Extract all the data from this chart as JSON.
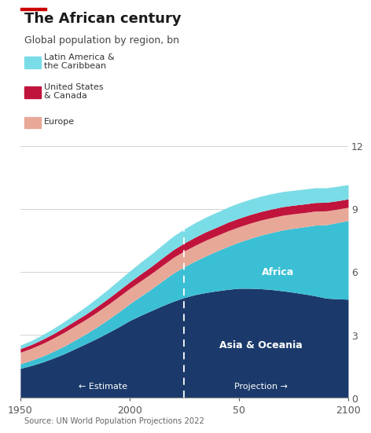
{
  "title": "The African century",
  "subtitle": "Global population by region, bn",
  "source": "Source: UN World Population Projections 2022",
  "title_color": "#1a1a1a",
  "background_color": "#ffffff",
  "projection_year": 2025,
  "x_years": [
    1950,
    1955,
    1960,
    1965,
    1970,
    1975,
    1980,
    1985,
    1990,
    1995,
    2000,
    2005,
    2010,
    2015,
    2020,
    2025,
    2030,
    2035,
    2040,
    2045,
    2050,
    2055,
    2060,
    2065,
    2070,
    2075,
    2080,
    2085,
    2090,
    2095,
    2100
  ],
  "asia_oceania": [
    1.4,
    1.54,
    1.7,
    1.89,
    2.1,
    2.34,
    2.58,
    2.83,
    3.1,
    3.38,
    3.68,
    3.93,
    4.16,
    4.39,
    4.6,
    4.78,
    4.92,
    5.02,
    5.1,
    5.17,
    5.22,
    5.22,
    5.2,
    5.16,
    5.1,
    5.03,
    4.95,
    4.86,
    4.75,
    4.72,
    4.7
  ],
  "africa": [
    0.22,
    0.25,
    0.28,
    0.32,
    0.36,
    0.41,
    0.47,
    0.54,
    0.62,
    0.71,
    0.8,
    0.91,
    1.03,
    1.18,
    1.34,
    1.47,
    1.6,
    1.75,
    1.9,
    2.05,
    2.2,
    2.37,
    2.55,
    2.72,
    2.9,
    3.05,
    3.2,
    3.37,
    3.5,
    3.63,
    3.75
  ],
  "europe": [
    0.55,
    0.57,
    0.6,
    0.63,
    0.66,
    0.68,
    0.69,
    0.71,
    0.72,
    0.73,
    0.73,
    0.73,
    0.74,
    0.74,
    0.75,
    0.75,
    0.75,
    0.75,
    0.74,
    0.74,
    0.73,
    0.73,
    0.72,
    0.71,
    0.7,
    0.69,
    0.68,
    0.67,
    0.66,
    0.64,
    0.63
  ],
  "us_canada": [
    0.17,
    0.18,
    0.2,
    0.21,
    0.23,
    0.24,
    0.25,
    0.27,
    0.28,
    0.3,
    0.31,
    0.33,
    0.34,
    0.36,
    0.37,
    0.38,
    0.39,
    0.4,
    0.4,
    0.41,
    0.41,
    0.41,
    0.41,
    0.41,
    0.41,
    0.41,
    0.41,
    0.41,
    0.41,
    0.4,
    0.4
  ],
  "latin_america": [
    0.17,
    0.19,
    0.22,
    0.25,
    0.28,
    0.32,
    0.36,
    0.4,
    0.44,
    0.48,
    0.52,
    0.56,
    0.59,
    0.62,
    0.65,
    0.67,
    0.69,
    0.7,
    0.71,
    0.72,
    0.73,
    0.73,
    0.73,
    0.73,
    0.72,
    0.71,
    0.71,
    0.7,
    0.69,
    0.69,
    0.68
  ],
  "colors": {
    "asia_oceania": "#1b3a6b",
    "africa": "#3bbfd4",
    "europe": "#e8a898",
    "us_canada": "#c0143c",
    "latin_america": "#7adce6"
  },
  "legend": [
    {
      "label": "Latin America &\nthe Caribbean",
      "color": "#7adce6"
    },
    {
      "label": "United States\n& Canada",
      "color": "#c0143c"
    },
    {
      "label": "Europe",
      "color": "#e8a898"
    }
  ],
  "ylim": [
    0,
    12
  ],
  "yticks": [
    0,
    3,
    6,
    9,
    12
  ],
  "xlim": [
    1950,
    2100
  ]
}
